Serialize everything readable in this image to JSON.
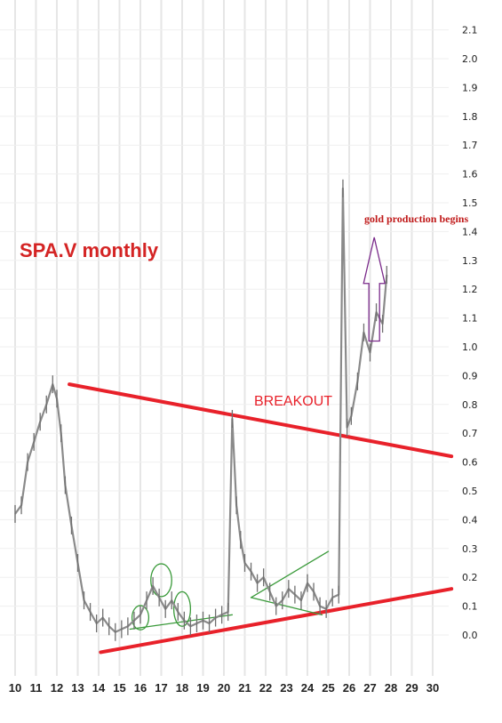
{
  "chart_data": {
    "type": "line",
    "title": "SPA.V monthly",
    "xlabel": "",
    "ylabel": "",
    "xlim": [
      10,
      30
    ],
    "ylim": [
      0.0,
      2.1
    ],
    "x_ticks": [
      "10",
      "11",
      "12",
      "13",
      "14",
      "15",
      "16",
      "17",
      "18",
      "19",
      "20",
      "21",
      "22",
      "23",
      "24",
      "25",
      "26",
      "27",
      "28",
      "29",
      "30"
    ],
    "y_ticks": [
      "0.0",
      "0.1",
      "0.2",
      "0.3",
      "0.4",
      "0.5",
      "0.6",
      "0.7",
      "0.8",
      "0.9",
      "1.0",
      "1.1",
      "1.2",
      "1.3",
      "1.4",
      "1.5",
      "1.6",
      "1.7",
      "1.8",
      "1.9",
      "2.0",
      "2.1"
    ],
    "grid": true,
    "series": [
      {
        "x": [
          10.0,
          10.3,
          10.6,
          10.9,
          11.2,
          11.5,
          11.8,
          12.0,
          12.2,
          12.4,
          12.7,
          13.0,
          13.3,
          13.6,
          13.9,
          14.2,
          14.5,
          14.8,
          15.1,
          15.4,
          15.7,
          16.0,
          16.3,
          16.6,
          16.9,
          17.2,
          17.5,
          17.8,
          18.1,
          18.4,
          18.7,
          19.0,
          19.3,
          19.6,
          19.9,
          20.2,
          20.4,
          20.6,
          20.8,
          21.0,
          21.3,
          21.6,
          21.9,
          22.2,
          22.5,
          22.8,
          23.1,
          23.4,
          23.7,
          24.0,
          24.3,
          24.6,
          24.9,
          25.2,
          25.5,
          25.7,
          25.9,
          26.1,
          26.4,
          26.7,
          27.0,
          27.3,
          27.6,
          27.8
        ],
        "values": [
          0.42,
          0.45,
          0.6,
          0.67,
          0.74,
          0.8,
          0.87,
          0.82,
          0.7,
          0.52,
          0.38,
          0.25,
          0.12,
          0.08,
          0.04,
          0.06,
          0.03,
          0.01,
          0.02,
          0.03,
          0.05,
          0.07,
          0.12,
          0.17,
          0.13,
          0.09,
          0.12,
          0.08,
          0.05,
          0.03,
          0.04,
          0.05,
          0.04,
          0.06,
          0.07,
          0.08,
          0.75,
          0.45,
          0.33,
          0.25,
          0.22,
          0.18,
          0.2,
          0.15,
          0.1,
          0.12,
          0.16,
          0.14,
          0.12,
          0.18,
          0.15,
          0.1,
          0.09,
          0.13,
          0.14,
          1.55,
          0.72,
          0.76,
          0.88,
          1.05,
          0.98,
          1.12,
          1.08,
          1.25
        ]
      }
    ],
    "annotations": {
      "breakout": "BREAKOUT",
      "gold": "gold production begins"
    },
    "colors": {
      "price": "#8a8a8a",
      "trend_red": "#e8212a",
      "trend_green": "#3a9a3a",
      "title_red": "#d42424",
      "arrow_purple": "#7a2a8a",
      "gold_text": "#c01a1a"
    }
  }
}
